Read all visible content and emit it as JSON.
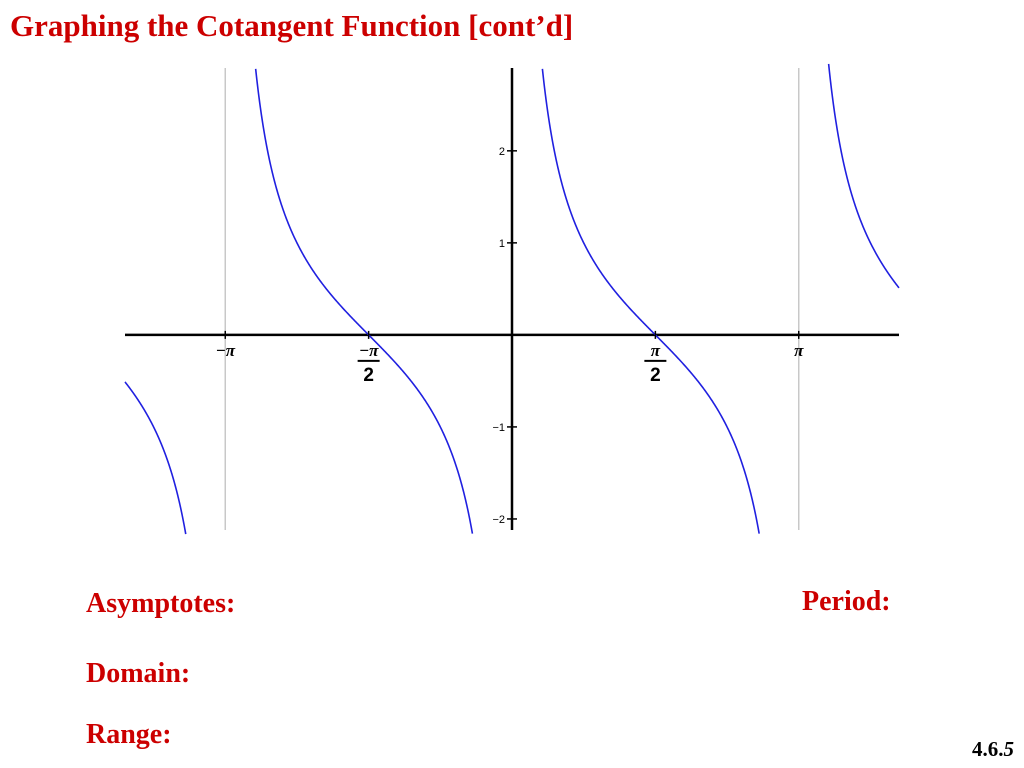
{
  "title": "Graphing the Cotangent Function [cont’d]",
  "labels": {
    "asymptotes": "Asymptotes:",
    "period": "Period:",
    "domain": "Domain:",
    "range": "Range:"
  },
  "slide_number": {
    "main": "4.6.",
    "last": "5"
  },
  "colors": {
    "title": "#cc0000",
    "curve": "#2020e0",
    "asymptote": "#c8c8c8",
    "axis": "#000000"
  },
  "chart_data": {
    "type": "line",
    "title": "",
    "xlabel": "",
    "ylabel": "",
    "function": "cot(x)",
    "xlim": [
      -4.24,
      4.24
    ],
    "ylim": [
      -2.12,
      2.9
    ],
    "asymptotes_x": [
      -3.14159,
      0,
      3.14159
    ],
    "x_ticks": [
      {
        "value": -3.14159,
        "num": "−π",
        "den": ""
      },
      {
        "value": -1.5708,
        "num": "−π",
        "den": "2"
      },
      {
        "value": 1.5708,
        "num": "π",
        "den": "2"
      },
      {
        "value": 3.14159,
        "num": "π",
        "den": ""
      }
    ],
    "y_ticks": [
      {
        "value": -2,
        "label": "−2"
      },
      {
        "value": -1,
        "label": "−1"
      },
      {
        "value": 1,
        "label": "1"
      },
      {
        "value": 2,
        "label": "2"
      }
    ],
    "grid": false,
    "legend": "none"
  }
}
